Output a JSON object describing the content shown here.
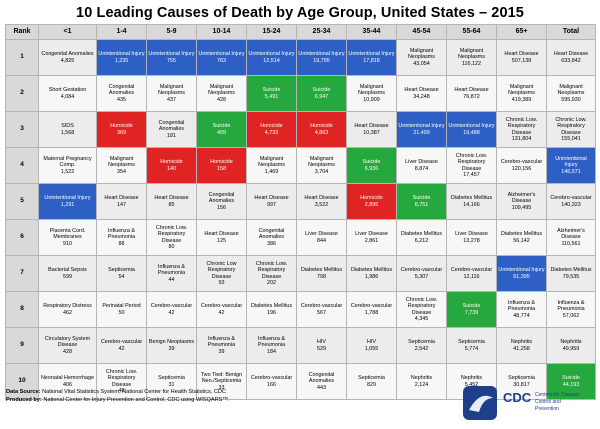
{
  "title": "10 Leading Causes of Death by Age Group, United States – 2015",
  "headers": [
    "Rank",
    "<1",
    "1-4",
    "5-9",
    "10-14",
    "15-24",
    "25-34",
    "35-44",
    "45-54",
    "55-64",
    "65+",
    "Total"
  ],
  "rows": [
    {
      "rank": "1",
      "cells": [
        {
          "name": "Congenital Anomalies",
          "num": "4,825",
          "cat": ""
        },
        {
          "name": "Unintentional Injury",
          "num": "1,235",
          "cat": "unint"
        },
        {
          "name": "Unintentional Injury",
          "num": "755",
          "cat": "unint"
        },
        {
          "name": "Unintentional Injury",
          "num": "763",
          "cat": "unint"
        },
        {
          "name": "Unintentional Injury",
          "num": "12,514",
          "cat": "unint"
        },
        {
          "name": "Unintentional Injury",
          "num": "19,795",
          "cat": "unint"
        },
        {
          "name": "Unintentional Injury",
          "num": "17,818",
          "cat": "unint"
        },
        {
          "name": "Malignant Neoplasms",
          "num": "43,054",
          "cat": ""
        },
        {
          "name": "Malignant Neoplasms",
          "num": "116,122",
          "cat": ""
        },
        {
          "name": "Heart Disease",
          "num": "507,138",
          "cat": ""
        },
        {
          "name": "Heart Disease",
          "num": "633,842",
          "cat": ""
        }
      ]
    },
    {
      "rank": "2",
      "cells": [
        {
          "name": "Short Gestation",
          "num": "4,084",
          "cat": ""
        },
        {
          "name": "Congenital Anomalies",
          "num": "435",
          "cat": ""
        },
        {
          "name": "Malignant Neoplasms",
          "num": "437",
          "cat": ""
        },
        {
          "name": "Malignant Neoplasms",
          "num": "428",
          "cat": ""
        },
        {
          "name": "Suicide",
          "num": "5,491",
          "cat": "suic"
        },
        {
          "name": "Suicide",
          "num": "6,947",
          "cat": "suic"
        },
        {
          "name": "Malignant Neoplasms",
          "num": "10,909",
          "cat": ""
        },
        {
          "name": "Heart Disease",
          "num": "34,248",
          "cat": ""
        },
        {
          "name": "Heart Disease",
          "num": "76,872",
          "cat": ""
        },
        {
          "name": "Malignant Neoplasms",
          "num": "419,389",
          "cat": ""
        },
        {
          "name": "Malignant Neoplasms",
          "num": "595,930",
          "cat": ""
        }
      ]
    },
    {
      "rank": "3",
      "cells": [
        {
          "name": "SIDS",
          "num": "1,568",
          "cat": ""
        },
        {
          "name": "Homicide",
          "num": "369",
          "cat": "homic"
        },
        {
          "name": "Congenital Anomalies",
          "num": "181",
          "cat": ""
        },
        {
          "name": "Suicide",
          "num": "409",
          "cat": "suic"
        },
        {
          "name": "Homicide",
          "num": "4,733",
          "cat": "homic"
        },
        {
          "name": "Homicide",
          "num": "4,863",
          "cat": "homic"
        },
        {
          "name": "Heart Disease",
          "num": "10,387",
          "cat": ""
        },
        {
          "name": "Unintentional Injury",
          "num": "21,499",
          "cat": "unint"
        },
        {
          "name": "Unintentional Injury",
          "num": "19,488",
          "cat": "unint"
        },
        {
          "name": "Chronic Low. Respiratory Disease",
          "num": "131,804",
          "cat": ""
        },
        {
          "name": "Chronic Low. Respiratory Disease",
          "num": "155,041",
          "cat": ""
        }
      ]
    },
    {
      "rank": "4",
      "cells": [
        {
          "name": "Maternal Pregnancy Comp.",
          "num": "1,522",
          "cat": ""
        },
        {
          "name": "Malignant Neoplasms",
          "num": "354",
          "cat": ""
        },
        {
          "name": "Homicide",
          "num": "140",
          "cat": "homic"
        },
        {
          "name": "Homicide",
          "num": "158",
          "cat": "homic"
        },
        {
          "name": "Malignant Neoplasms",
          "num": "1,469",
          "cat": ""
        },
        {
          "name": "Malignant Neoplasms",
          "num": "3,704",
          "cat": ""
        },
        {
          "name": "Suicide",
          "num": "6,936",
          "cat": "suic"
        },
        {
          "name": "Liver Disease",
          "num": "8,874",
          "cat": ""
        },
        {
          "name": "Chronic Low. Respiratory Disease",
          "num": "17,457",
          "cat": ""
        },
        {
          "name": "Cerebro-vascular",
          "num": "120,156",
          "cat": ""
        },
        {
          "name": "Unintentional Injury",
          "num": "146,571",
          "cat": "unint"
        }
      ]
    },
    {
      "rank": "5",
      "cells": [
        {
          "name": "Unintentional Injury",
          "num": "1,291",
          "cat": "unint"
        },
        {
          "name": "Heart Disease",
          "num": "147",
          "cat": ""
        },
        {
          "name": "Heart Disease",
          "num": "85",
          "cat": ""
        },
        {
          "name": "Congenital Anomalies",
          "num": "156",
          "cat": ""
        },
        {
          "name": "Heart Disease",
          "num": "997",
          "cat": ""
        },
        {
          "name": "Heart Disease",
          "num": "3,522",
          "cat": ""
        },
        {
          "name": "Homicide",
          "num": "2,895",
          "cat": "homic"
        },
        {
          "name": "Suicide",
          "num": "8,751",
          "cat": "suic"
        },
        {
          "name": "Diabetes Mellitus",
          "num": "14,166",
          "cat": ""
        },
        {
          "name": "Alzheimer's Disease",
          "num": "109,495",
          "cat": ""
        },
        {
          "name": "Cerebro-vascular",
          "num": "140,323",
          "cat": ""
        }
      ]
    },
    {
      "rank": "6",
      "cells": [
        {
          "name": "Placenta Cord. Membranes",
          "num": "910",
          "cat": ""
        },
        {
          "name": "Influenza & Pneumonia",
          "num": "88",
          "cat": ""
        },
        {
          "name": "Chronic Low. Respiratory Disease",
          "num": "80",
          "cat": ""
        },
        {
          "name": "Heart Disease",
          "num": "125",
          "cat": ""
        },
        {
          "name": "Congenital Anomalies",
          "num": "386",
          "cat": ""
        },
        {
          "name": "Liver Disease",
          "num": "844",
          "cat": ""
        },
        {
          "name": "Liver Disease",
          "num": "2,861",
          "cat": ""
        },
        {
          "name": "Diabetes Mellitus",
          "num": "6,212",
          "cat": ""
        },
        {
          "name": "Liver Disease",
          "num": "13,278",
          "cat": ""
        },
        {
          "name": "Diabetes Mellitus",
          "num": "56,142",
          "cat": ""
        },
        {
          "name": "Alzheimer's Disease",
          "num": "110,561",
          "cat": ""
        }
      ]
    },
    {
      "rank": "7",
      "cells": [
        {
          "name": "Bacterial Sepsis",
          "num": "599",
          "cat": ""
        },
        {
          "name": "Septicemia",
          "num": "54",
          "cat": ""
        },
        {
          "name": "Influenza & Pneumonia",
          "num": "44",
          "cat": ""
        },
        {
          "name": "Chronic Low Respiratory Disease",
          "num": "93",
          "cat": ""
        },
        {
          "name": "Chronic Low. Respiratory Disease",
          "num": "202",
          "cat": ""
        },
        {
          "name": "Diabetes Mellitus",
          "num": "798",
          "cat": ""
        },
        {
          "name": "Diabetes Mellitus",
          "num": "1,986",
          "cat": ""
        },
        {
          "name": "Cerebro-vascular",
          "num": "5,307",
          "cat": ""
        },
        {
          "name": "Cerebro-vascular",
          "num": "12,116",
          "cat": ""
        },
        {
          "name": "Unintentional Injury",
          "num": "51,395",
          "cat": "unint"
        },
        {
          "name": "Diabetes Mellitus",
          "num": "79,535",
          "cat": ""
        }
      ]
    },
    {
      "rank": "8",
      "cells": [
        {
          "name": "Respiratory Distress",
          "num": "462",
          "cat": ""
        },
        {
          "name": "Perinatal Period",
          "num": "50",
          "cat": ""
        },
        {
          "name": "Cerebro-vascular",
          "num": "42",
          "cat": ""
        },
        {
          "name": "Cerebro-vascular",
          "num": "42",
          "cat": ""
        },
        {
          "name": "Diabetes Mellitus",
          "num": "196",
          "cat": ""
        },
        {
          "name": "Cerebro-vascular",
          "num": "567",
          "cat": ""
        },
        {
          "name": "Cerebro-vascular",
          "num": "1,788",
          "cat": ""
        },
        {
          "name": "Chronic Low. Respiratory Disease",
          "num": "4,345",
          "cat": ""
        },
        {
          "name": "Suicide",
          "num": "7,739",
          "cat": "suic"
        },
        {
          "name": "Influenza & Pneumonia",
          "num": "48,774",
          "cat": ""
        },
        {
          "name": "Influenza & Pneumonia",
          "num": "57,062",
          "cat": ""
        }
      ]
    },
    {
      "rank": "9",
      "cells": [
        {
          "name": "Circulatory System Disease",
          "num": "428",
          "cat": ""
        },
        {
          "name": "Cerebro-vascular",
          "num": "42",
          "cat": ""
        },
        {
          "name": "Benign Neoplasms",
          "num": "39",
          "cat": ""
        },
        {
          "name": "Influenza & Pneumonia",
          "num": "39",
          "cat": ""
        },
        {
          "name": "Influenza & Pneumonia",
          "num": "184",
          "cat": ""
        },
        {
          "name": "HIV",
          "num": "529",
          "cat": ""
        },
        {
          "name": "HIV",
          "num": "1,055",
          "cat": ""
        },
        {
          "name": "Septicemia",
          "num": "2,542",
          "cat": ""
        },
        {
          "name": "Septicemia",
          "num": "5,774",
          "cat": ""
        },
        {
          "name": "Nephritis",
          "num": "41,258",
          "cat": ""
        },
        {
          "name": "Nephritis",
          "num": "49,959",
          "cat": ""
        }
      ]
    },
    {
      "rank": "10",
      "cells": [
        {
          "name": "Neonatal Hemorrhage",
          "num": "406",
          "cat": ""
        },
        {
          "name": "Chronic Low. Respiratory Disease",
          "num": "40",
          "cat": ""
        },
        {
          "name": "Septicemia",
          "num": "31",
          "cat": ""
        },
        {
          "name": "Two Tied: Benign Neo./Septicemia",
          "num": "33",
          "cat": ""
        },
        {
          "name": "Cerebro-vascular",
          "num": "166",
          "cat": ""
        },
        {
          "name": "Congenital Anomalies",
          "num": "443",
          "cat": ""
        },
        {
          "name": "Septicemia",
          "num": "829",
          "cat": ""
        },
        {
          "name": "Nephritis",
          "num": "2,124",
          "cat": ""
        },
        {
          "name": "Nephritis",
          "num": "5,452",
          "cat": ""
        },
        {
          "name": "Septicemia",
          "num": "30,817",
          "cat": ""
        },
        {
          "name": "Suicide",
          "num": "44,193",
          "cat": "suic"
        }
      ]
    }
  ],
  "colors": {
    "unintentional_injury": "#2e5fc4",
    "homicide": "#e02323",
    "suicide": "#25a83d"
  },
  "footer": {
    "data_source_label": "Data Source:",
    "data_source_text": "National Vital Statistics System, National Center for Health Statistics, CDC",
    "produced_by_label": "Produced by:",
    "produced_by_text": "National Center for Injury Prevention and Control, CDC using WISQARS™."
  },
  "logo": {
    "abbr": "CDC",
    "line1": "Centers for Disease",
    "line2": "Control and",
    "line3": "Prevention"
  }
}
